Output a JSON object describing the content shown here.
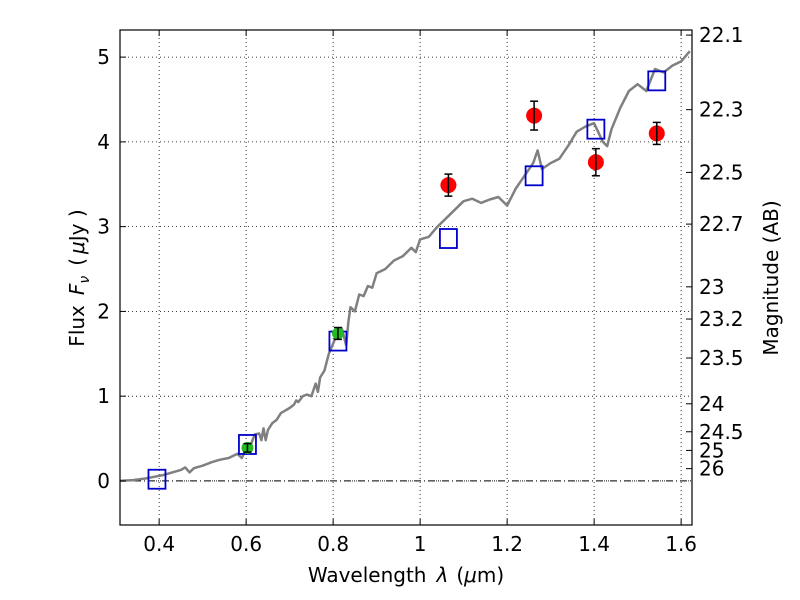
{
  "chart_data": {
    "type": "scatter",
    "title": "",
    "xlabel": "Wavelength",
    "xlabel_symbol": "λ",
    "xlabel_unit_open": "(",
    "xlabel_unit_mu": "μ",
    "xlabel_unit_rest": "m)",
    "ylabel": "Flux",
    "ylabel_symbol": "F",
    "ylabel_subscript": "ν",
    "ylabel_unit_open": "(",
    "ylabel_unit_mu": "μ",
    "ylabel_unit_rest": "Jy )",
    "y2label": "Magnitude (AB)",
    "xlim": [
      0.31,
      1.625
    ],
    "ylim": [
      -0.52,
      5.32
    ],
    "grid": true,
    "x_ticks": [
      0.4,
      0.6,
      0.8,
      1.0,
      1.2,
      1.4,
      1.6
    ],
    "x_tick_labels": [
      "0.4",
      "0.6",
      "0.8",
      "1",
      "1.2",
      "1.4",
      "1.6"
    ],
    "y_ticks": [
      0,
      1,
      2,
      3,
      4,
      5
    ],
    "y_tick_labels": [
      "0",
      "1",
      "2",
      "3",
      "4",
      "5"
    ],
    "y2_ticks": [
      {
        "label": "22.1",
        "flux": 5.26
      },
      {
        "label": "22.3",
        "flux": 4.38
      },
      {
        "label": "22.5",
        "flux": 3.64
      },
      {
        "label": "22.7",
        "flux": 3.03
      },
      {
        "label": "23",
        "flux": 2.29
      },
      {
        "label": "23.2",
        "flux": 1.91
      },
      {
        "label": "23.5",
        "flux": 1.45
      },
      {
        "label": "24",
        "flux": 0.91
      },
      {
        "label": "24.5",
        "flux": 0.58
      },
      {
        "label": "25",
        "flux": 0.36
      },
      {
        "label": "26",
        "flux": 0.145
      }
    ],
    "colors": {
      "model": "#808080",
      "model_photometry": "#0000cc",
      "nir_observed": "#ff0000",
      "optical_observed": "#22bb22",
      "errorbar": "#000000",
      "zero_line": "#000000"
    },
    "series": [
      {
        "name": "model spectrum",
        "style": "line",
        "x": [
          0.31,
          0.34,
          0.37,
          0.39,
          0.41,
          0.43,
          0.45,
          0.46,
          0.47,
          0.48,
          0.5,
          0.52,
          0.54,
          0.56,
          0.58,
          0.59,
          0.6,
          0.61,
          0.62,
          0.63,
          0.635,
          0.64,
          0.645,
          0.65,
          0.66,
          0.67,
          0.68,
          0.69,
          0.7,
          0.71,
          0.715,
          0.72,
          0.73,
          0.74,
          0.75,
          0.76,
          0.765,
          0.77,
          0.78,
          0.79,
          0.8,
          0.81,
          0.82,
          0.83,
          0.835,
          0.84,
          0.85,
          0.86,
          0.87,
          0.88,
          0.89,
          0.9,
          0.92,
          0.94,
          0.96,
          0.98,
          0.99,
          1.0,
          1.02,
          1.04,
          1.06,
          1.08,
          1.1,
          1.12,
          1.14,
          1.16,
          1.18,
          1.2,
          1.22,
          1.24,
          1.26,
          1.27,
          1.28,
          1.3,
          1.32,
          1.34,
          1.36,
          1.38,
          1.4,
          1.42,
          1.43,
          1.44,
          1.46,
          1.48,
          1.5,
          1.52,
          1.54,
          1.56,
          1.58,
          1.6,
          1.62
        ],
        "y": [
          0.0,
          0.01,
          0.03,
          0.05,
          0.07,
          0.1,
          0.13,
          0.16,
          0.1,
          0.15,
          0.18,
          0.22,
          0.25,
          0.27,
          0.32,
          0.27,
          0.38,
          0.42,
          0.55,
          0.56,
          0.48,
          0.62,
          0.48,
          0.6,
          0.68,
          0.72,
          0.8,
          0.83,
          0.86,
          0.9,
          0.95,
          0.93,
          1.0,
          1.02,
          1.0,
          1.15,
          1.05,
          1.22,
          1.3,
          1.5,
          1.62,
          1.75,
          1.8,
          1.6,
          1.88,
          2.05,
          2.0,
          2.2,
          2.18,
          2.3,
          2.28,
          2.45,
          2.5,
          2.6,
          2.65,
          2.75,
          2.7,
          2.85,
          2.88,
          3.0,
          3.1,
          3.2,
          3.3,
          3.33,
          3.28,
          3.32,
          3.35,
          3.25,
          3.45,
          3.6,
          3.75,
          3.9,
          3.68,
          3.75,
          3.8,
          3.95,
          4.12,
          4.18,
          4.22,
          4.0,
          3.95,
          4.15,
          4.4,
          4.6,
          4.68,
          4.6,
          4.86,
          4.82,
          4.9,
          4.95,
          5.07
        ]
      },
      {
        "name": "model photometry",
        "style": "open-square",
        "x": [
          0.395,
          0.603,
          0.811,
          1.065,
          1.262,
          1.404,
          1.544
        ],
        "y": [
          0.02,
          0.43,
          1.65,
          2.86,
          3.6,
          4.15,
          4.72
        ]
      },
      {
        "name": "NIR observed",
        "style": "filled-circle",
        "x": [
          1.065,
          1.262,
          1.404,
          1.544
        ],
        "y": [
          3.49,
          4.31,
          3.76,
          4.1
        ],
        "yerr": [
          0.13,
          0.17,
          0.16,
          0.13
        ]
      },
      {
        "name": "optical observed",
        "style": "filled-circle",
        "x": [
          0.603,
          0.811
        ],
        "y": [
          0.39,
          1.74
        ],
        "yerr": [
          0.05,
          0.07
        ]
      }
    ]
  }
}
